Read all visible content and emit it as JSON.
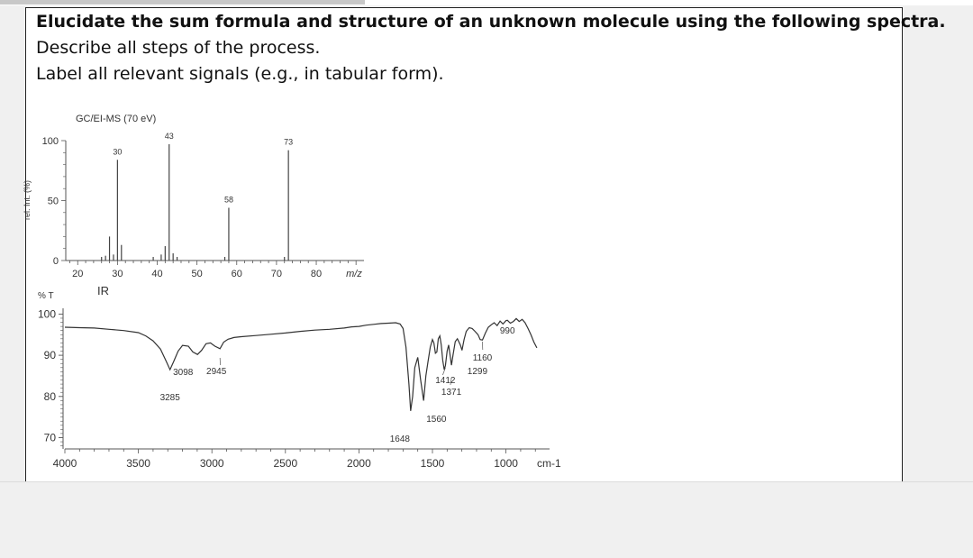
{
  "question": {
    "line1": "Elucidate the sum formula and structure of an unknown molecule using the following spectra.",
    "line2": "Describe all steps of the process.",
    "line3": "Label all relevant signals (e.g., in tabular form)."
  },
  "chart_data": [
    {
      "type": "bar",
      "title": "GC/EI-MS (70 eV)",
      "xlabel": "m/z",
      "ylabel": "rel. Int. (%)",
      "xlim": [
        17,
        92
      ],
      "ylim": [
        0,
        100
      ],
      "xticks": [
        "20",
        "30",
        "40",
        "50",
        "60",
        "70",
        "80"
      ],
      "yticks": [
        "0",
        "50",
        "100"
      ],
      "x": [
        26,
        27,
        28,
        29,
        30,
        31,
        39,
        41,
        42,
        43,
        44,
        45,
        57,
        58,
        72,
        73
      ],
      "values": [
        3,
        4,
        20,
        5,
        84,
        13,
        3,
        5,
        12,
        97,
        6,
        3,
        3,
        44,
        3,
        92
      ],
      "labels": [
        {
          "x": 30,
          "text": "30"
        },
        {
          "x": 43,
          "text": "43"
        },
        {
          "x": 58,
          "text": "58"
        },
        {
          "x": 73,
          "text": "73"
        }
      ]
    },
    {
      "type": "line",
      "title": "IR",
      "xlabel": "cm-1",
      "ylabel": "% T",
      "xlim": [
        4000,
        750
      ],
      "ylim": [
        68,
        100
      ],
      "xticks": [
        "4000",
        "3500",
        "3000",
        "2500",
        "2000",
        "1500",
        "1000"
      ],
      "yticks": [
        "70",
        "80",
        "90",
        "100"
      ],
      "x": [
        4000,
        3900,
        3800,
        3700,
        3600,
        3500,
        3450,
        3400,
        3350,
        3310,
        3285,
        3260,
        3230,
        3200,
        3160,
        3130,
        3098,
        3070,
        3040,
        3010,
        2980,
        2945,
        2920,
        2890,
        2850,
        2800,
        2700,
        2600,
        2500,
        2400,
        2300,
        2200,
        2100,
        2050,
        2000,
        1950,
        1900,
        1850,
        1800,
        1750,
        1720,
        1700,
        1680,
        1660,
        1648,
        1635,
        1620,
        1600,
        1580,
        1560,
        1545,
        1530,
        1515,
        1500,
        1490,
        1480,
        1470,
        1460,
        1450,
        1440,
        1430,
        1420,
        1412,
        1400,
        1390,
        1380,
        1371,
        1360,
        1345,
        1330,
        1310,
        1299,
        1285,
        1270,
        1250,
        1230,
        1210,
        1190,
        1175,
        1160,
        1140,
        1120,
        1100,
        1080,
        1060,
        1040,
        1020,
        1000,
        990,
        970,
        950,
        930,
        910,
        890,
        870,
        850,
        830,
        810,
        790
      ],
      "series": [
        {
          "values": [
            96.8,
            96.7,
            96.6,
            96.3,
            96,
            95.5,
            94.7,
            93.5,
            91.5,
            88.5,
            86.5,
            88.5,
            91,
            92.4,
            92.2,
            90.8,
            90.2,
            91.2,
            92.8,
            93,
            92.2,
            91.6,
            93.2,
            93.9,
            94.3,
            94.5,
            94.8,
            95.1,
            95.4,
            95.8,
            96.1,
            96.3,
            96.6,
            96.9,
            97,
            97.3,
            97.5,
            97.7,
            97.8,
            97.9,
            97.6,
            96.5,
            92,
            83,
            76.5,
            80,
            87,
            89.5,
            84,
            79,
            85,
            88.5,
            92,
            93.8,
            93,
            90.5,
            90.8,
            94,
            94.7,
            92.5,
            88.8,
            86.5,
            87.5,
            91,
            92.5,
            90,
            87.6,
            90,
            93.3,
            94,
            92.5,
            91.2,
            93.8,
            95.8,
            96.7,
            96.5,
            95.8,
            95,
            93.8,
            93.7,
            95.4,
            96.8,
            97.4,
            97.9,
            97.2,
            98.3,
            97.6,
            98.4,
            98.5,
            97.8,
            98.2,
            98.9,
            98.2,
            98.7,
            97.9,
            96.5,
            95,
            93.2,
            91.8
          ]
        }
      ],
      "labels": [
        {
          "x": 3285,
          "text": "3285"
        },
        {
          "x": 3098,
          "text": "3098"
        },
        {
          "x": 2945,
          "text": "2945"
        },
        {
          "x": 1648,
          "text": "1648"
        },
        {
          "x": 1560,
          "text": "1560"
        },
        {
          "x": 1412,
          "text": "1412"
        },
        {
          "x": 1371,
          "text": "1371"
        },
        {
          "x": 1299,
          "text": "1299"
        },
        {
          "x": 1160,
          "text": "1160"
        },
        {
          "x": 990,
          "text": "990"
        }
      ]
    }
  ]
}
